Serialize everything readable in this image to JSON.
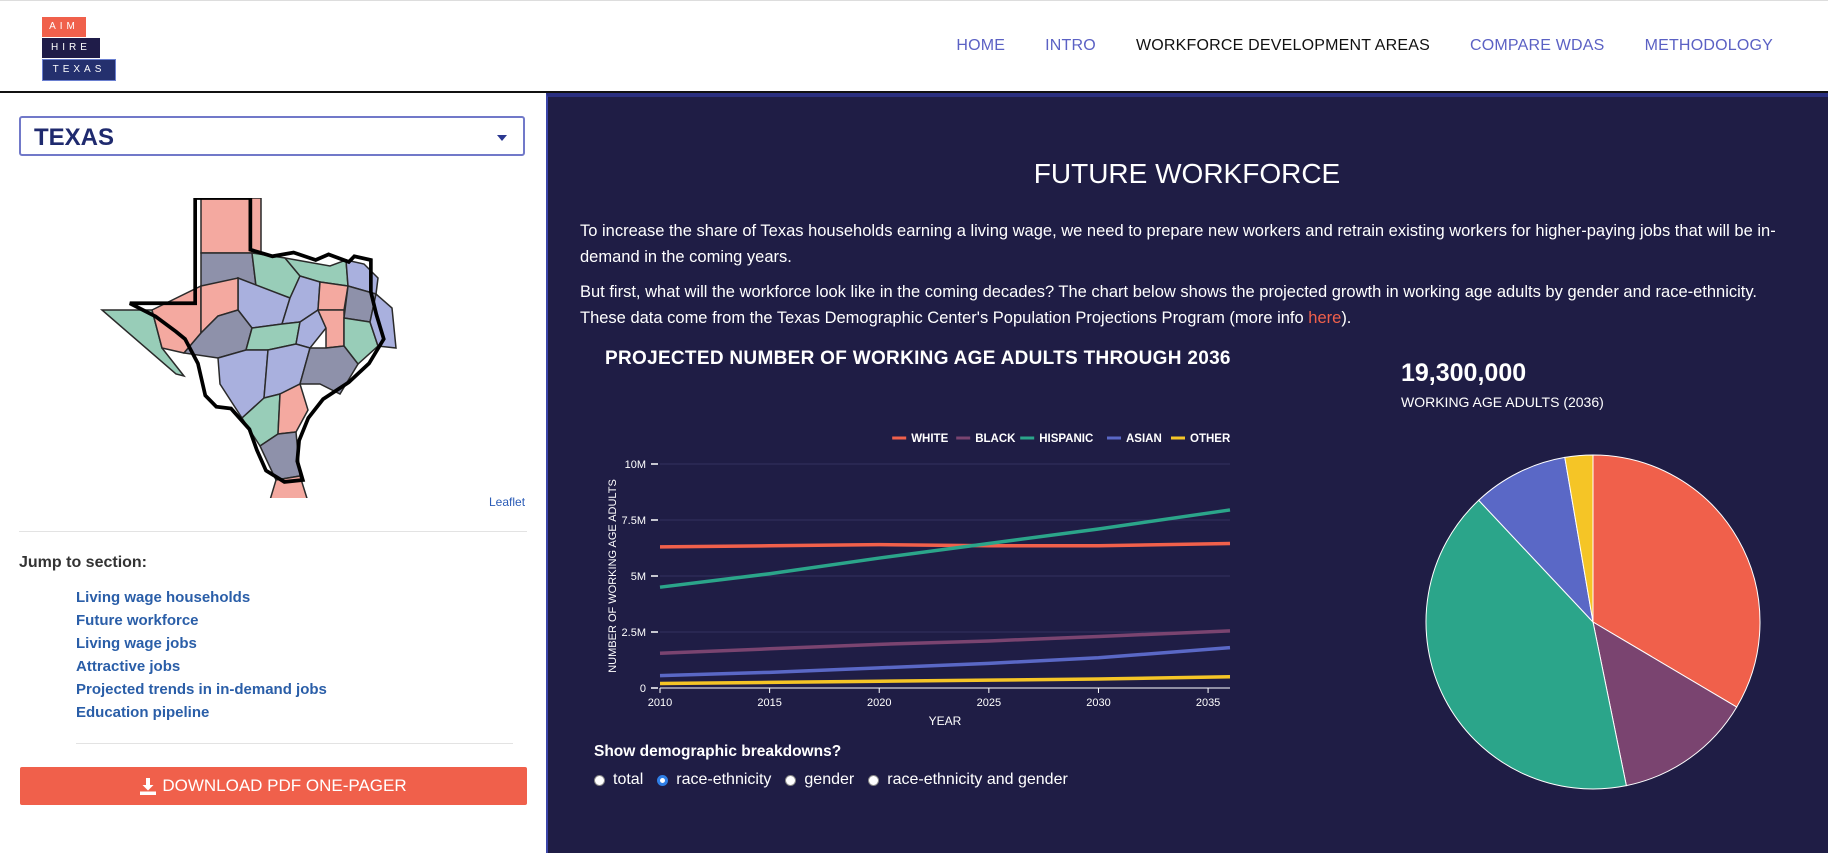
{
  "logo": {
    "line1": "AIM",
    "line2": "HIRE",
    "line3": "TEXAS"
  },
  "nav": {
    "home": "HOME",
    "intro": "INTRO",
    "wda": "WORKFORCE DEVELOPMENT AREAS",
    "compare": "COMPARE WDAS",
    "methodology": "METHODOLOGY"
  },
  "sidebar": {
    "select_value": "TEXAS",
    "leaflet": "Leaflet",
    "jump_label": "Jump to section:",
    "links": [
      "Living wage households",
      "Future workforce",
      "Living wage jobs",
      "Attractive jobs",
      "Projected trends in in-demand jobs",
      "Education pipeline"
    ],
    "download_label": "DOWNLOAD PDF ONE-PAGER"
  },
  "main": {
    "title": "FUTURE WORKFORCE",
    "para1": "To increase the share of Texas households earning a living wage, we need to prepare new workers and retrain existing workers for higher-paying jobs that will be in-demand in the coming years.",
    "para2_pre": "But first, what will the workforce look like in the coming decades? The chart below shows the projected growth in working age adults by gender and race-ethnicity. These data come from the Texas Demographic Center's Population Projections Program (more info ",
    "para2_link": "here",
    "para2_post": ").",
    "big_number": "19,300,000",
    "big_number_label": "WORKING AGE ADULTS (2036)",
    "breakdowns_label": "Show demographic breakdowns?",
    "radio_options": [
      "total",
      "race-ethnicity",
      "gender",
      "race-ethnicity and gender"
    ],
    "radio_selected": "race-ethnicity"
  },
  "colors": {
    "white": "#f0604b",
    "black": "#7a4470",
    "hispanic": "#2ba58a",
    "asian": "#5a68c6",
    "other": "#f5c526",
    "panel": "#1f1d45"
  },
  "chart_data": [
    {
      "type": "line",
      "title": "PROJECTED NUMBER OF WORKING AGE ADULTS THROUGH 2036",
      "xlabel": "YEAR",
      "ylabel": "NUMBER OF WORKING AGE ADULTS",
      "x": [
        2010,
        2015,
        2020,
        2025,
        2030,
        2036
      ],
      "xticks": [
        "2010",
        "2015",
        "2020",
        "2025",
        "2030",
        "2035"
      ],
      "yticks": [
        "0",
        "2.5M",
        "5M",
        "7.5M",
        "10M"
      ],
      "ylim": [
        0,
        10000000
      ],
      "xlim": [
        2010,
        2036
      ],
      "legend_position": "top-right",
      "series": [
        {
          "name": "WHITE",
          "values": [
            6300000,
            6350000,
            6400000,
            6350000,
            6350000,
            6450000
          ]
        },
        {
          "name": "BLACK",
          "values": [
            1550000,
            1750000,
            1950000,
            2100000,
            2300000,
            2550000
          ]
        },
        {
          "name": "HISPANIC",
          "values": [
            4500000,
            5100000,
            5800000,
            6450000,
            7100000,
            7950000
          ]
        },
        {
          "name": "ASIAN",
          "values": [
            550000,
            700000,
            900000,
            1100000,
            1350000,
            1800000
          ]
        },
        {
          "name": "OTHER",
          "values": [
            200000,
            250000,
            300000,
            350000,
            400000,
            500000
          ]
        }
      ]
    },
    {
      "type": "pie",
      "categories": [
        "WHITE",
        "BLACK",
        "HISPANIC",
        "ASIAN",
        "OTHER"
      ],
      "values": [
        33.5,
        13.3,
        41.2,
        9.3,
        2.7
      ]
    }
  ]
}
